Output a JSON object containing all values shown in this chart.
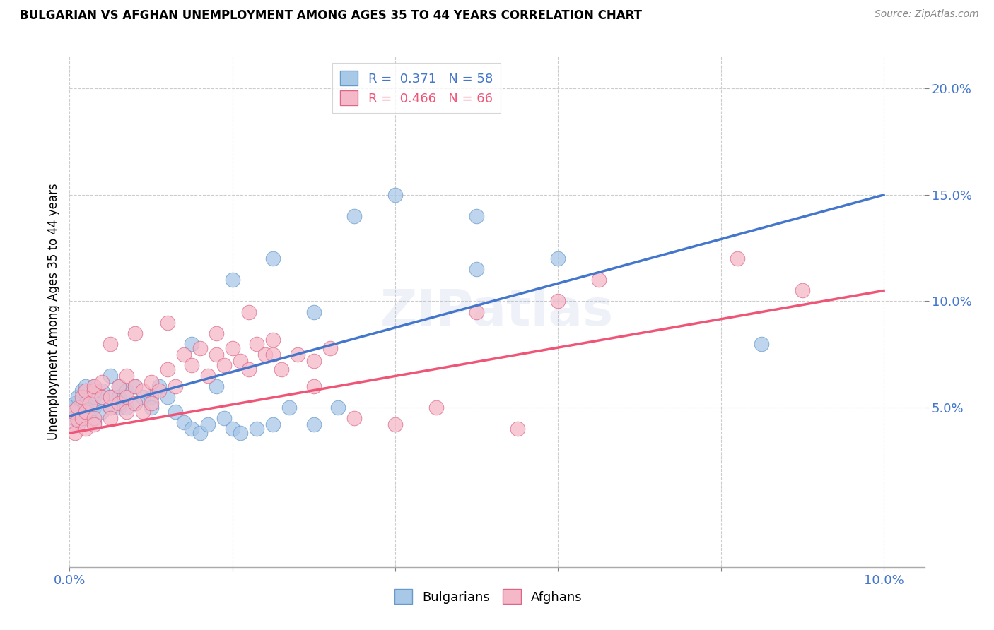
{
  "title": "BULGARIAN VS AFGHAN UNEMPLOYMENT AMONG AGES 35 TO 44 YEARS CORRELATION CHART",
  "source": "Source: ZipAtlas.com",
  "ylabel": "Unemployment Among Ages 35 to 44 years",
  "ylabel_right_ticks": [
    "5.0%",
    "10.0%",
    "15.0%",
    "20.0%"
  ],
  "ylabel_right_vals": [
    0.05,
    0.1,
    0.15,
    0.2
  ],
  "x_ticks": [
    0.0,
    0.02,
    0.04,
    0.06,
    0.08,
    0.1
  ],
  "x_lim": [
    0.0,
    0.105
  ],
  "y_lim": [
    -0.025,
    0.215
  ],
  "blue_color": "#A8C8E8",
  "pink_color": "#F5B8C8",
  "blue_edge_color": "#6699CC",
  "pink_edge_color": "#DD6688",
  "blue_line_color": "#4477CC",
  "pink_line_color": "#EE5577",
  "watermark": "ZIPatlas",
  "legend1_blue_text_R": "R = ",
  "legend1_blue_val_R": "0.371",
  "legend1_blue_text_N": "  N = ",
  "legend1_blue_val_N": "58",
  "legend1_pink_text_R": "R = ",
  "legend1_pink_val_R": "0.466",
  "legend1_pink_text_N": "  N = ",
  "legend1_pink_val_N": "66",
  "blue_trend_x0": 0.0,
  "blue_trend_y0": 0.046,
  "blue_trend_x1": 0.1,
  "blue_trend_y1": 0.15,
  "pink_trend_x0": 0.0,
  "pink_trend_y0": 0.038,
  "pink_trend_x1": 0.1,
  "pink_trend_y1": 0.105,
  "bulgarians_x": [
    0.0003,
    0.0005,
    0.0007,
    0.001,
    0.001,
    0.001,
    0.0015,
    0.0015,
    0.002,
    0.002,
    0.002,
    0.0025,
    0.003,
    0.003,
    0.003,
    0.003,
    0.004,
    0.004,
    0.004,
    0.005,
    0.005,
    0.005,
    0.006,
    0.006,
    0.006,
    0.007,
    0.007,
    0.008,
    0.008,
    0.009,
    0.01,
    0.01,
    0.011,
    0.012,
    0.013,
    0.014,
    0.015,
    0.016,
    0.017,
    0.018,
    0.019,
    0.02,
    0.021,
    0.023,
    0.025,
    0.027,
    0.03,
    0.033,
    0.015,
    0.02,
    0.025,
    0.03,
    0.035,
    0.04,
    0.05,
    0.06,
    0.085,
    0.05
  ],
  "bulgarians_y": [
    0.05,
    0.045,
    0.052,
    0.048,
    0.055,
    0.042,
    0.05,
    0.058,
    0.045,
    0.06,
    0.052,
    0.048,
    0.05,
    0.055,
    0.043,
    0.06,
    0.055,
    0.048,
    0.058,
    0.065,
    0.05,
    0.055,
    0.06,
    0.05,
    0.055,
    0.058,
    0.05,
    0.052,
    0.06,
    0.055,
    0.055,
    0.05,
    0.06,
    0.055,
    0.048,
    0.043,
    0.04,
    0.038,
    0.042,
    0.06,
    0.045,
    0.04,
    0.038,
    0.04,
    0.042,
    0.05,
    0.042,
    0.05,
    0.08,
    0.11,
    0.12,
    0.095,
    0.14,
    0.15,
    0.14,
    0.12,
    0.08,
    0.115
  ],
  "afghans_x": [
    0.0003,
    0.0005,
    0.0007,
    0.001,
    0.001,
    0.0015,
    0.0015,
    0.002,
    0.002,
    0.002,
    0.0025,
    0.003,
    0.003,
    0.003,
    0.003,
    0.004,
    0.004,
    0.005,
    0.005,
    0.005,
    0.006,
    0.006,
    0.007,
    0.007,
    0.007,
    0.008,
    0.008,
    0.009,
    0.009,
    0.01,
    0.01,
    0.011,
    0.012,
    0.013,
    0.014,
    0.015,
    0.016,
    0.017,
    0.018,
    0.019,
    0.02,
    0.021,
    0.022,
    0.023,
    0.024,
    0.025,
    0.026,
    0.028,
    0.03,
    0.032,
    0.005,
    0.008,
    0.012,
    0.018,
    0.022,
    0.025,
    0.03,
    0.035,
    0.04,
    0.045,
    0.05,
    0.055,
    0.06,
    0.065,
    0.082,
    0.09
  ],
  "afghans_y": [
    0.042,
    0.048,
    0.038,
    0.05,
    0.044,
    0.055,
    0.045,
    0.048,
    0.058,
    0.04,
    0.052,
    0.058,
    0.045,
    0.06,
    0.042,
    0.055,
    0.062,
    0.05,
    0.055,
    0.045,
    0.06,
    0.052,
    0.065,
    0.055,
    0.048,
    0.06,
    0.052,
    0.048,
    0.058,
    0.062,
    0.052,
    0.058,
    0.068,
    0.06,
    0.075,
    0.07,
    0.078,
    0.065,
    0.075,
    0.07,
    0.078,
    0.072,
    0.068,
    0.08,
    0.075,
    0.082,
    0.068,
    0.075,
    0.072,
    0.078,
    0.08,
    0.085,
    0.09,
    0.085,
    0.095,
    0.075,
    0.06,
    0.045,
    0.042,
    0.05,
    0.095,
    0.04,
    0.1,
    0.11,
    0.12,
    0.105
  ]
}
